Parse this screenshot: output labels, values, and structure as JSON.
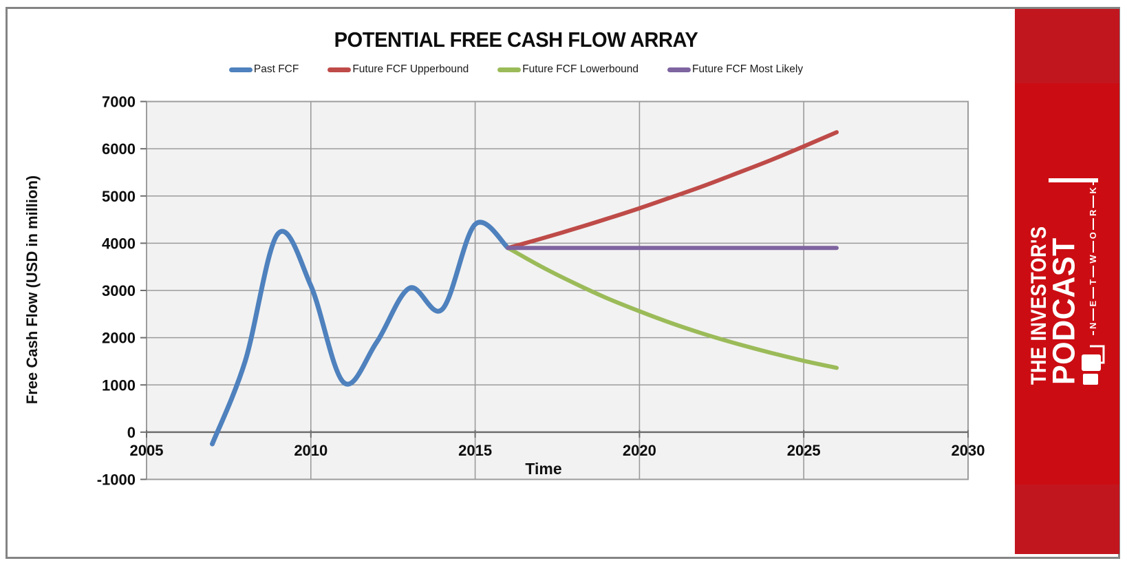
{
  "chart_data": {
    "type": "line",
    "title": "POTENTIAL FREE CASH FLOW ARRAY",
    "xlabel": "Time",
    "ylabel": "Free Cash Flow (USD in million)",
    "xlim": [
      2005,
      2030
    ],
    "ylim": [
      -1000,
      7000
    ],
    "x_ticks": [
      2005,
      2010,
      2015,
      2020,
      2025,
      2030
    ],
    "y_ticks": [
      -1000,
      0,
      1000,
      2000,
      3000,
      4000,
      5000,
      6000,
      7000
    ],
    "grid": true,
    "legend_position": "top",
    "plot_bg": "#F2F2F2",
    "grid_color": "#9B9B9B",
    "zero_line_color": "#6E6E6E",
    "series": [
      {
        "name": "Past FCF",
        "color": "#4E81BD",
        "width": 7,
        "smooth": true,
        "x": [
          2007,
          2008,
          2009,
          2010,
          2011,
          2012,
          2013,
          2014,
          2015,
          2016
        ],
        "y": [
          -250,
          1500,
          4200,
          3100,
          1050,
          1900,
          3050,
          2600,
          4400,
          3900
        ]
      },
      {
        "name": "Future FCF Upperbound",
        "color": "#BE4B48",
        "width": 6,
        "smooth": true,
        "x": [
          2016,
          2017,
          2018,
          2019,
          2020,
          2021,
          2022,
          2023,
          2024,
          2025,
          2026
        ],
        "y": [
          3900,
          4095,
          4300,
          4515,
          4740,
          4980,
          5225,
          5490,
          5760,
          6050,
          6350
        ]
      },
      {
        "name": "Future FCF Lowerbound",
        "color": "#9BBB59",
        "width": 6,
        "smooth": true,
        "x": [
          2016,
          2017,
          2018,
          2019,
          2020,
          2021,
          2022,
          2023,
          2024,
          2025,
          2026
        ],
        "y": [
          3900,
          3510,
          3160,
          2840,
          2560,
          2300,
          2070,
          1865,
          1680,
          1510,
          1360
        ]
      },
      {
        "name": "Future FCF Most Likely",
        "color": "#7E64A0",
        "width": 6,
        "smooth": false,
        "x": [
          2016,
          2026
        ],
        "y": [
          3900,
          3900
        ]
      }
    ]
  },
  "sidebar": {
    "brand_line1": "THE INVESTOR'S",
    "brand_line2": "PODCAST",
    "brand_line3": "NETWORK",
    "bg_color": "#CB0D13",
    "band_color": "#C2161F"
  }
}
